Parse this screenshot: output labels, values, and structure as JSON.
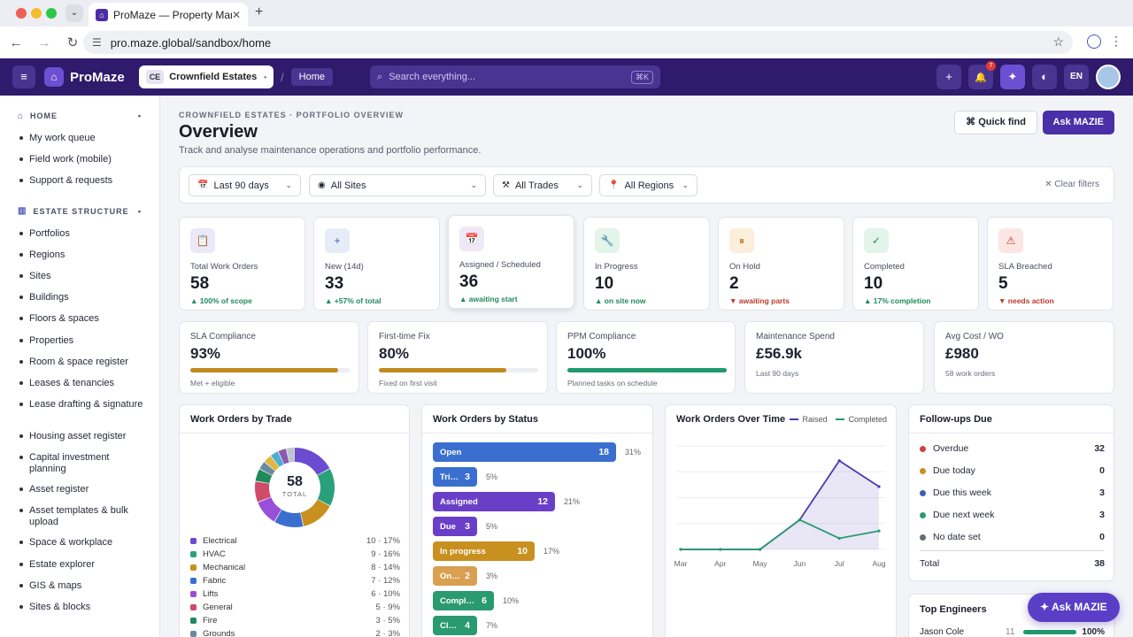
{
  "browser": {
    "tab_title": "ProMaze — Property Managem",
    "url": "pro.maze.global/sandbox/home",
    "tab_close": "✕",
    "new_tab": "+",
    "back": "←",
    "forward": "→",
    "reload": "↻",
    "menu": "⋮",
    "star": "☆"
  },
  "header": {
    "brand": "ProMaze",
    "estate_abbr": "CE",
    "estate_name": "Crownfield Estates",
    "breadcrumb": "Home",
    "search_placeholder": "Search everything...",
    "search_shortcut": "⌘K",
    "notif_count": "7",
    "lang": "EN",
    "menu_icon": "≡",
    "plus_icon": "+",
    "bell_icon": "🔔",
    "spark_icon": "✦",
    "theme_icon": "◐"
  },
  "sidebar": {
    "sections": [
      {
        "title": "HOME",
        "items": [
          "My work queue",
          "Field work (mobile)",
          "Support & requests"
        ]
      },
      {
        "title": "ESTATE STRUCTURE",
        "items": [
          "Portfolios",
          "Regions",
          "Sites",
          "Buildings",
          "Floors & spaces",
          "Properties",
          "Room & space register",
          "Leases & tenancies",
          "Lease drafting & signature",
          "Housing asset register",
          "Capital investment planning",
          "Asset register",
          "Asset templates & bulk upload",
          "Space & workplace",
          "Estate explorer",
          "GIS & maps",
          "Sites & blocks"
        ]
      }
    ]
  },
  "page": {
    "eyebrow": "CROWNFIELD ESTATES · PORTFOLIO OVERVIEW",
    "title": "Overview",
    "subtitle": "Track and analyse maintenance operations and portfolio performance.",
    "quick_find": "⌘ Quick find",
    "ask_mazie": "Ask MAZIE"
  },
  "filters": {
    "period": "Last 90 days",
    "sites": "All Sites",
    "trades": "All Trades",
    "regions": "All Regions",
    "clear": "✕ Clear filters"
  },
  "kpis": [
    {
      "label": "Total Work Orders",
      "value": "58",
      "trend": "▲ 100% of scope",
      "icon": "📋",
      "color": "#4b3ab0",
      "bg": "#ebe8f8",
      "trend_color": "#1f8a5a"
    },
    {
      "label": "New (14d)",
      "value": "33",
      "trend": "▲ +57% of total",
      "icon": "+",
      "color": "#3a5fb0",
      "bg": "#e6edf9",
      "trend_color": "#1f8a5a"
    },
    {
      "label": "Assigned / Scheduled",
      "value": "36",
      "trend": "▲ awaiting start",
      "icon": "📅",
      "color": "#6a3ab0",
      "bg": "#efe8f8",
      "trend_color": "#1f8a5a"
    },
    {
      "label": "In Progress",
      "value": "10",
      "trend": "▲ on site now",
      "icon": "🔧",
      "color": "#1f8a5a",
      "bg": "#e3f4ea",
      "trend_color": "#1f8a5a"
    },
    {
      "label": "On Hold",
      "value": "2",
      "trend": "▼ awaiting parts",
      "icon": "⏸",
      "color": "#b07a1a",
      "bg": "#fbefdc",
      "trend_color": "#c0392b"
    },
    {
      "label": "Completed",
      "value": "10",
      "trend": "▲ 17% completion",
      "icon": "✓",
      "color": "#1f8a5a",
      "bg": "#e3f4ea",
      "trend_color": "#1f8a5a"
    },
    {
      "label": "SLA Breached",
      "value": "5",
      "trend": "▼ needs action",
      "icon": "⚠",
      "color": "#c0392b",
      "bg": "#fbe6e4",
      "trend_color": "#c0392b"
    }
  ],
  "metrics": [
    {
      "label": "SLA Compliance",
      "value": "93%",
      "note": "Met + eligible",
      "progress": 0.93,
      "color": "#c08a1e"
    },
    {
      "label": "First-time Fix",
      "value": "80%",
      "note": "Fixed on first visit",
      "progress": 0.8,
      "color": "#c08a1e"
    },
    {
      "label": "PPM Compliance",
      "value": "100%",
      "note": "Planned tasks on schedule",
      "progress": 1.0,
      "color": "#1f9a6e"
    },
    {
      "label": "Maintenance Spend",
      "value": "£56.9k",
      "note": "Last 90 days"
    },
    {
      "label": "Avg Cost / WO",
      "value": "£980",
      "note": "58 work orders"
    }
  ],
  "trade_panel": {
    "title": "Work Orders by Trade",
    "total": "58",
    "total_label": "TOTAL",
    "rows": [
      {
        "name": "Electrical",
        "count": 10,
        "value": "10 · 17%",
        "color": "#6b4bd0"
      },
      {
        "name": "HVAC",
        "count": 9,
        "value": "9 · 16%",
        "color": "#2aa07a"
      },
      {
        "name": "Mechanical",
        "count": 8,
        "value": "8 · 14%",
        "color": "#c8901e"
      },
      {
        "name": "Fabric",
        "count": 7,
        "value": "7 · 12%",
        "color": "#3a6fd0"
      },
      {
        "name": "Lifts",
        "count": 6,
        "value": "6 · 10%",
        "color": "#9a4fd8"
      },
      {
        "name": "General",
        "count": 5,
        "value": "5 · 9%",
        "color": "#d04a6a"
      },
      {
        "name": "Fire",
        "count": 3,
        "value": "3 · 5%",
        "color": "#1f8a5a"
      },
      {
        "name": "Grounds",
        "count": 2,
        "value": "2 · 3%",
        "color": "#6a8aa0"
      },
      {
        "name": "",
        "count": 2,
        "value": "",
        "color": "#e0b83a"
      },
      {
        "name": "",
        "count": 2,
        "value": "",
        "color": "#4ab0d0"
      },
      {
        "name": "",
        "count": 2,
        "value": "",
        "color": "#8a5ab0"
      },
      {
        "name": "",
        "count": 2,
        "value": "",
        "color": "#c0c4cc"
      }
    ]
  },
  "status_panel": {
    "title": "Work Orders by Status",
    "rows": [
      {
        "label": "Open",
        "count": 18,
        "pct": "31%",
        "color": "#3a6fd0"
      },
      {
        "label": "Triage",
        "count": 3,
        "pct": "5%",
        "color": "#3a6fd0"
      },
      {
        "label": "Assigned",
        "count": 12,
        "pct": "21%",
        "color": "#6a3fc8"
      },
      {
        "label": "Due",
        "count": 3,
        "pct": "5%",
        "color": "#6a3fc8"
      },
      {
        "label": "In progress",
        "count": 10,
        "pct": "17%",
        "color": "#c8901e"
      },
      {
        "label": "On hold",
        "count": 2,
        "pct": "3%",
        "color": "#d8a050"
      },
      {
        "label": "Complete",
        "count": 6,
        "pct": "10%",
        "color": "#2a9a70"
      },
      {
        "label": "Closed",
        "count": 4,
        "pct": "7%",
        "color": "#2a9a70"
      }
    ]
  },
  "chart_data": {
    "type": "line",
    "title": "Work Orders Over Time",
    "categories": [
      "Mar",
      "Apr",
      "May",
      "Jun",
      "Jul",
      "Aug"
    ],
    "series": [
      {
        "name": "Raised",
        "values": [
          0,
          0,
          0,
          8,
          24,
          17
        ],
        "color": "#4b3ab0"
      },
      {
        "name": "Completed",
        "values": [
          0,
          0,
          0,
          8,
          3,
          5
        ],
        "color": "#2a9a70"
      }
    ],
    "ylim": [
      0,
      28
    ],
    "grid": true,
    "legend": "top-right"
  },
  "followups": {
    "title": "Follow-ups Due",
    "rows": [
      {
        "label": "Overdue",
        "value": "32",
        "color": "#d04040"
      },
      {
        "label": "Due today",
        "value": "0",
        "color": "#c8901e"
      },
      {
        "label": "Due this week",
        "value": "3",
        "color": "#3a5fb0"
      },
      {
        "label": "Due next week",
        "value": "3",
        "color": "#2a9a70"
      },
      {
        "label": "No date set",
        "value": "0",
        "color": "#666a78"
      }
    ],
    "total_label": "Total",
    "total_value": "38"
  },
  "engineers": {
    "title": "Top Engineers",
    "rows": [
      {
        "name": "Jason Cole",
        "count": "11",
        "pct": "100%",
        "progress": 1.0
      }
    ]
  },
  "fab": "✦ Ask MAZIE"
}
